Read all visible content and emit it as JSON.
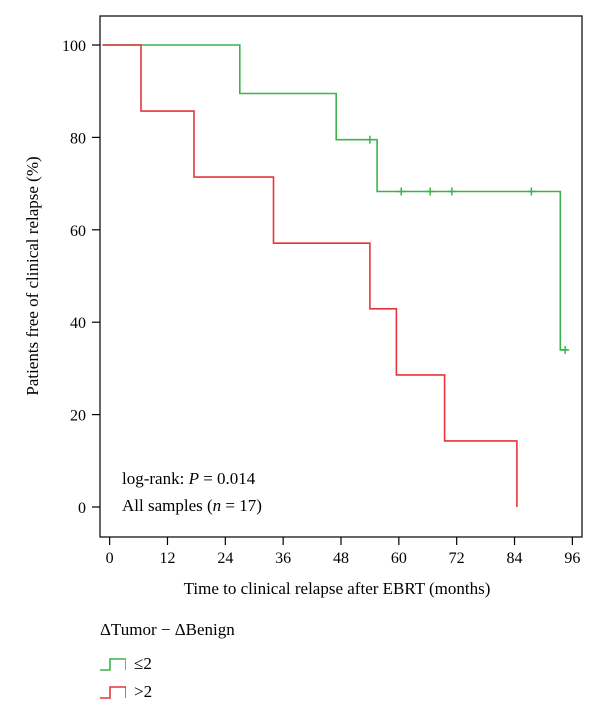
{
  "chart_data": {
    "type": "line",
    "step": true,
    "xlabel": "Time to clinical relapse after EBRT (months)",
    "ylabel": "Patients free of clinical relapse (%)",
    "xticks": [
      0,
      12,
      24,
      36,
      48,
      60,
      72,
      84,
      96
    ],
    "yticks": [
      0,
      20,
      40,
      60,
      80,
      100
    ],
    "xlim": [
      -2,
      98
    ],
    "ylim": [
      0,
      100
    ],
    "grid": false,
    "annotations": [
      "log-rank: P = 0.014",
      "All samples (n = 17)"
    ],
    "legend": {
      "title": "ΔTumor − ΔBenign",
      "placement": "bottom-left",
      "items": [
        "≤2",
        ">2"
      ]
    },
    "series": [
      {
        "name": "≤2",
        "color": "#3cb44b",
        "steps": [
          [
            -1.5,
            100
          ],
          [
            27,
            100
          ],
          [
            27,
            89.5
          ],
          [
            47,
            89.5
          ],
          [
            47,
            79.5
          ],
          [
            55.5,
            79.5
          ],
          [
            55.5,
            68.3
          ],
          [
            93.5,
            68.3
          ],
          [
            93.5,
            34
          ],
          [
            95,
            34
          ]
        ],
        "censored": [
          [
            54,
            79.5
          ],
          [
            60.5,
            68.3
          ],
          [
            66.5,
            68.3
          ],
          [
            71,
            68.3
          ],
          [
            87.5,
            68.3
          ],
          [
            94.5,
            34
          ]
        ]
      },
      {
        "name": ">2",
        "color": "#e6353a",
        "steps": [
          [
            -1.5,
            100
          ],
          [
            6.5,
            100
          ],
          [
            6.5,
            85.7
          ],
          [
            17.5,
            85.7
          ],
          [
            17.5,
            71.4
          ],
          [
            34,
            71.4
          ],
          [
            34,
            57.1
          ],
          [
            54,
            57.1
          ],
          [
            54,
            42.9
          ],
          [
            59.5,
            42.9
          ],
          [
            59.5,
            28.6
          ],
          [
            69.5,
            28.6
          ],
          [
            69.5,
            14.3
          ],
          [
            84.5,
            14.3
          ],
          [
            84.5,
            0
          ]
        ],
        "censored": []
      }
    ]
  }
}
